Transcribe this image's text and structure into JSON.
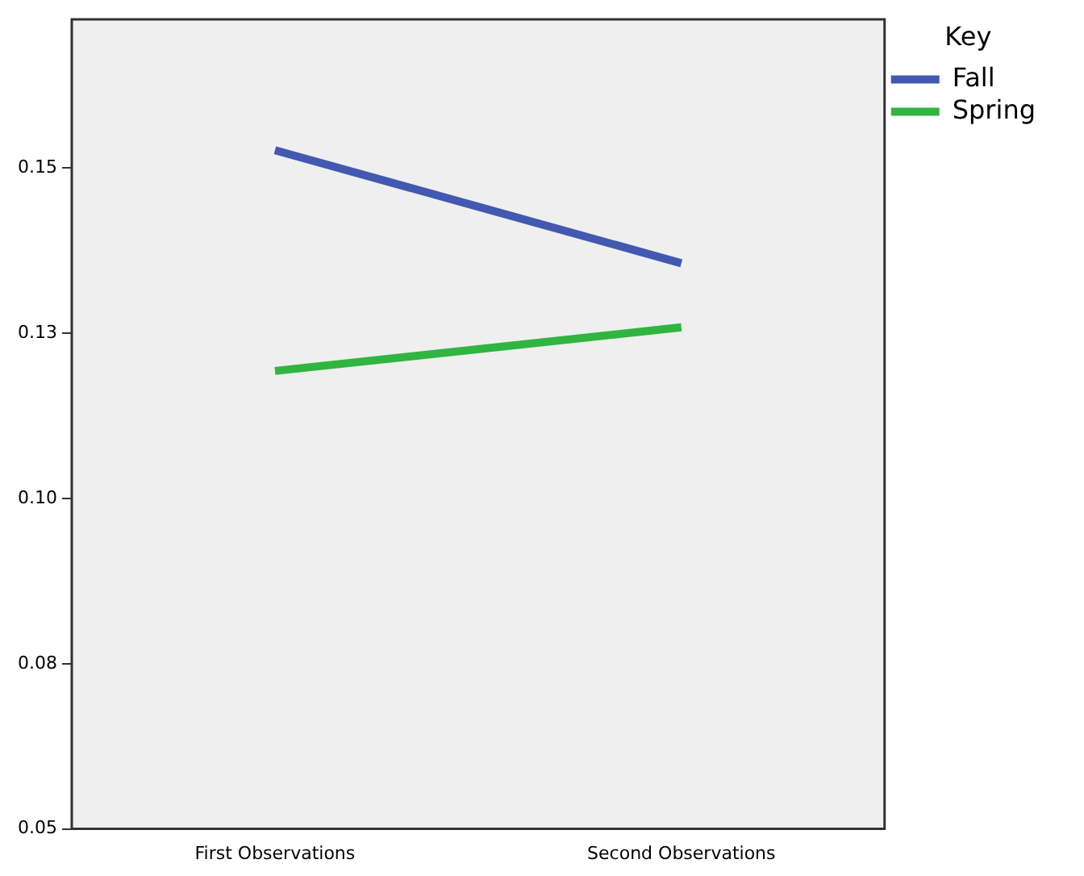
{
  "chart_data": {
    "type": "line",
    "legend_title": "Key",
    "legend": "top right",
    "grid": false,
    "marker": "none",
    "line_style": "solid",
    "categories": [
      "First Observations",
      "Second Observations"
    ],
    "ylim": [
      0.05,
      0.1725
    ],
    "yticks": [
      0.05,
      {
        "value": 0.075,
        "label": "0.08"
      },
      {
        "value": 0.1,
        "label": "0.10"
      },
      {
        "value": 0.125,
        "label": "0.13"
      },
      0.15
    ],
    "series": [
      {
        "name": "Fall",
        "color": "#4358b0",
        "values": [
          0.1527,
          0.1356
        ]
      },
      {
        "name": "Spring",
        "color": "#2fb540",
        "values": [
          0.1193,
          0.1259
        ]
      }
    ]
  }
}
